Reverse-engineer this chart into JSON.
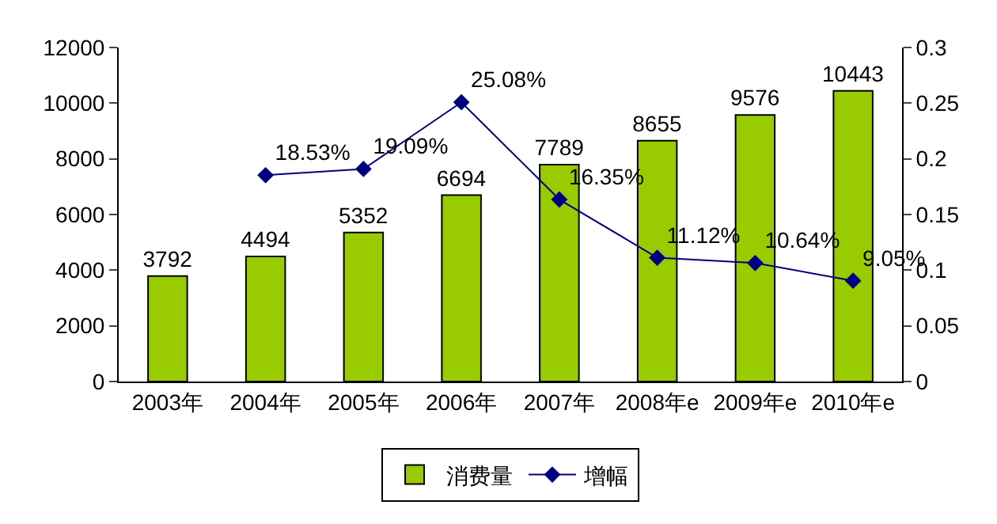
{
  "chart_data": {
    "type": "bar",
    "categories": [
      "2003年",
      "2004年",
      "2005年",
      "2006年",
      "2007年",
      "2008年e",
      "2009年e",
      "2010年e"
    ],
    "series": [
      {
        "name": "消费量",
        "color": "#99cc00",
        "values": [
          3792,
          4494,
          5352,
          6694,
          7789,
          8655,
          9576,
          10443
        ],
        "value_labels": [
          "3792",
          "4494",
          "5352",
          "6694",
          "7789",
          "8655",
          "9576",
          "10443"
        ]
      },
      {
        "name": "增幅",
        "type": "line",
        "axis": "y2",
        "color": "#000080",
        "marker": "diamond",
        "line_style": "solid",
        "values": [
          null,
          0.1853,
          0.1909,
          0.2508,
          0.1635,
          0.1112,
          0.1064,
          0.0905
        ],
        "value_labels": [
          null,
          "18.53%",
          "19.09%",
          "25.08%",
          "16.35%",
          "11.12%",
          "10.64%",
          "9.05%"
        ]
      }
    ],
    "ylim": [
      0,
      12000
    ],
    "yticks": [
      0,
      2000,
      4000,
      6000,
      8000,
      10000,
      12000
    ],
    "y2lim": [
      0,
      0.3
    ],
    "y2ticks": [
      0,
      0.05,
      0.1,
      0.15,
      0.2,
      0.25,
      0.3
    ],
    "grid": false,
    "legend": "bottom"
  }
}
